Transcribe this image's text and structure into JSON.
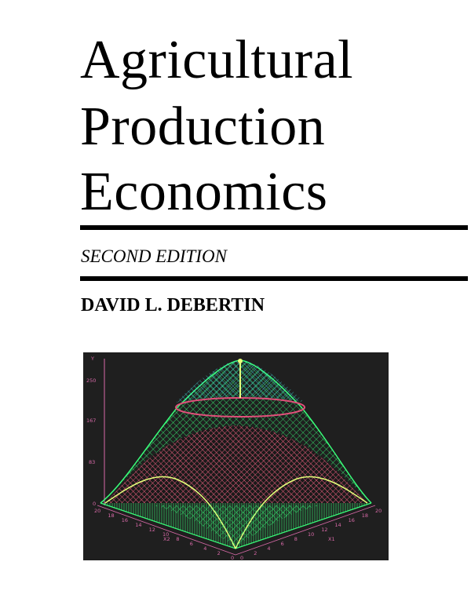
{
  "book": {
    "title_lines": [
      "Agricultural",
      "Production",
      "Economics"
    ],
    "edition": "SECOND EDITION",
    "author": "DAVID L. DEBERTIN"
  },
  "cover_image": {
    "description_colors": {
      "background": "#1f1f1f",
      "mesh_green": "#39ff7a",
      "mesh_red": "#e0507a",
      "mesh_cyan": "#3fd7d9",
      "axis": "#d86aa8"
    },
    "axis_labels": {
      "y": "Y",
      "x1": "X1",
      "x2": "X2"
    },
    "y_ticks": [
      "250",
      "167",
      "83",
      "0"
    ],
    "x2_ticks": [
      "20",
      "18",
      "16",
      "14",
      "12",
      "10",
      "8",
      "6",
      "4",
      "2",
      "0"
    ],
    "x1_ticks": [
      "0",
      "2",
      "4",
      "6",
      "8",
      "10",
      "12",
      "14",
      "16",
      "18",
      "20"
    ]
  }
}
